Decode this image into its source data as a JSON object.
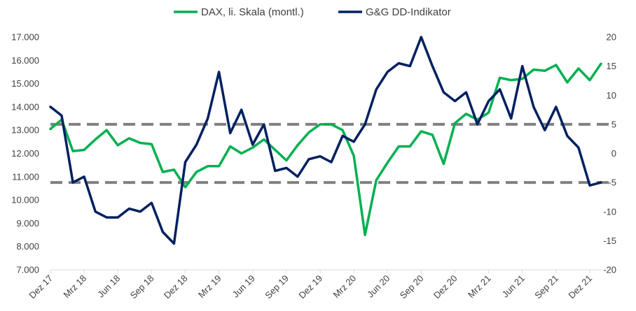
{
  "chart_data": {
    "type": "line",
    "title": "",
    "legend_position": "top",
    "grid": false,
    "x_tick_labels": [
      "Dez 17",
      "Mrz 18",
      "Jun 18",
      "Sep 18",
      "Dez 18",
      "Mrz 19",
      "Jun 19",
      "Sep 19",
      "Dez 19",
      "Mrz 20",
      "Jun 20",
      "Sep 20",
      "Dez 20",
      "Mrz 21",
      "Jun 21",
      "Sep 21",
      "Dez 21"
    ],
    "y_left": {
      "ticks": [
        "7.000",
        "8.000",
        "9.000",
        "10.000",
        "11.000",
        "12.000",
        "13.000",
        "14.000",
        "15.000",
        "16.000",
        "17.000"
      ],
      "ylim": [
        7000,
        17000
      ]
    },
    "y_right": {
      "ticks": [
        "-20",
        "-15",
        "-10",
        "-5",
        "0",
        "5",
        "10",
        "15",
        "20"
      ],
      "ylim": [
        -20,
        20
      ]
    },
    "x": [
      "Dez 17",
      "Jan 18",
      "Feb 18",
      "Mrz 18",
      "Apr 18",
      "Mai 18",
      "Jun 18",
      "Jul 18",
      "Aug 18",
      "Sep 18",
      "Okt 18",
      "Nov 18",
      "Dez 18",
      "Jan 19",
      "Feb 19",
      "Mrz 19",
      "Apr 19",
      "Mai 19",
      "Jun 19",
      "Jul 19",
      "Aug 19",
      "Sep 19",
      "Okt 19",
      "Nov 19",
      "Dez 19",
      "Jan 20",
      "Feb 20",
      "Mrz 20",
      "Apr 20",
      "Mai 20",
      "Jun 20",
      "Jul 20",
      "Aug 20",
      "Sep 20",
      "Okt 20",
      "Nov 20",
      "Dez 20",
      "Jan 21",
      "Feb 21",
      "Mrz 21",
      "Apr 21",
      "Mai 21",
      "Jun 21",
      "Jul 21",
      "Aug 21",
      "Sep 21",
      "Okt 21",
      "Nov 21",
      "Dez 21",
      "Jan 22"
    ],
    "series": [
      {
        "name": "DAX, li. Skala (montl.)",
        "axis": "left",
        "color": "#00b050",
        "values": [
          13050,
          13450,
          12100,
          12150,
          12600,
          13000,
          12350,
          12650,
          12450,
          12400,
          11200,
          11300,
          10550,
          11200,
          11450,
          11450,
          12300,
          12000,
          12250,
          12600,
          12150,
          11700,
          12350,
          12900,
          13250,
          13250,
          13000,
          11900,
          8500,
          10850,
          11600,
          12300,
          12300,
          12950,
          12800,
          11550,
          13300,
          13700,
          13450,
          13750,
          15250,
          15150,
          15200,
          15600,
          15550,
          15800,
          15050,
          15650,
          15150,
          15850
        ]
      },
      {
        "name": "G&G DD-Indikator",
        "axis": "right",
        "color": "#002060",
        "values": [
          8,
          6.5,
          -5,
          -4,
          -10,
          -11,
          -11,
          -9.5,
          -10,
          -8.5,
          -13.5,
          -15.5,
          -1.5,
          1.5,
          6,
          14,
          3.5,
          7.5,
          1.5,
          5,
          -3,
          -2.5,
          -4,
          -1,
          -0.5,
          -1.5,
          3,
          2,
          5,
          11,
          14,
          15.5,
          15,
          20,
          15,
          10.5,
          9,
          10.5,
          5,
          9,
          11,
          6,
          15,
          8,
          4,
          8,
          3,
          1,
          -5.5,
          -5
        ]
      }
    ],
    "reference_lines": [
      {
        "axis": "right",
        "value": 5,
        "color": "#808080",
        "style": "dashed"
      },
      {
        "axis": "right",
        "value": -5,
        "color": "#808080",
        "style": "dashed"
      }
    ]
  }
}
